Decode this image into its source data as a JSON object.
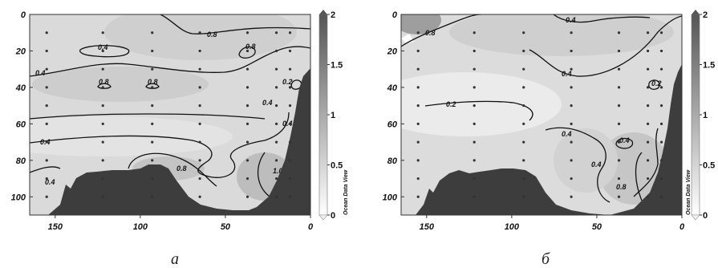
{
  "chart_data": [
    {
      "type": "contour",
      "panel_label": "а",
      "x_ticks": [
        150,
        100,
        50,
        0
      ],
      "y_ticks": [
        0,
        20,
        40,
        60,
        80,
        100
      ],
      "xlim": [
        165,
        0
      ],
      "ylim": [
        110,
        0
      ],
      "colorbar": {
        "ticks": [
          0,
          0.5,
          1,
          1.5,
          2
        ],
        "range": [
          0,
          2
        ],
        "caption": "Ocean Data View"
      },
      "contour_labels": [
        "0.8",
        "0.4",
        "0.8",
        "0.4",
        "0.8",
        "0.8",
        "0.2",
        "0.4",
        "0.4",
        "0.4",
        "0.8",
        "1.0",
        "0.4"
      ],
      "station_x": [
        155,
        122,
        93,
        65,
        37,
        20,
        12
      ]
    },
    {
      "type": "contour",
      "panel_label": "б",
      "x_ticks": [
        150,
        100,
        50,
        0
      ],
      "y_ticks": [
        0,
        20,
        40,
        60,
        80,
        100
      ],
      "xlim": [
        165,
        0
      ],
      "ylim": [
        110,
        0
      ],
      "colorbar": {
        "ticks": [
          0,
          0.5,
          1,
          1.5,
          2
        ],
        "range": [
          0,
          2
        ],
        "caption": "Ocean Data View"
      },
      "contour_labels": [
        "0.8",
        "0.4",
        "0.4",
        "0.2",
        "0.2",
        "0.4",
        "0.4",
        "0.4",
        "0.8"
      ],
      "station_x": [
        155,
        122,
        93,
        65,
        37,
        20,
        12
      ]
    }
  ]
}
